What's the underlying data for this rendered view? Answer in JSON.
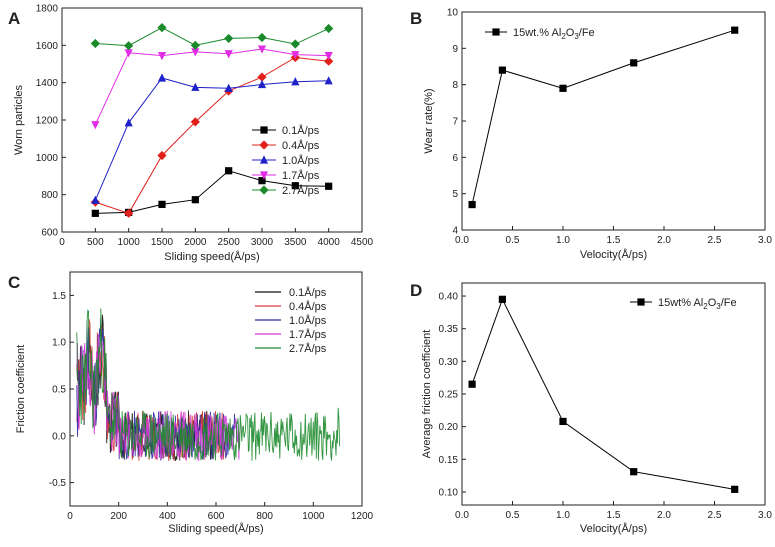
{
  "chart_data": [
    {
      "id": "A",
      "panel_label": "A",
      "type": "line",
      "xlabel": "Sliding speed(Å/ps)",
      "ylabel": "Worn particles",
      "xlim": [
        0,
        4500
      ],
      "ylim": [
        600,
        1800
      ],
      "xticks": [
        0,
        500,
        1000,
        1500,
        2000,
        2500,
        3000,
        3500,
        4000,
        4500
      ],
      "yticks": [
        600,
        800,
        1000,
        1200,
        1400,
        1600,
        1800
      ],
      "x": [
        500,
        1000,
        1500,
        2000,
        2500,
        3000,
        3500,
        4000
      ],
      "legend_position": "center-right",
      "series": [
        {
          "name": "0.1Å/ps",
          "color": "#000000",
          "marker": "square",
          "values": [
            700,
            705,
            748,
            773,
            928,
            875,
            848,
            845
          ]
        },
        {
          "name": "0.4Å/ps",
          "color": "#e0201b",
          "marker": "diamond",
          "values": [
            760,
            700,
            1010,
            1190,
            1355,
            1430,
            1535,
            1515
          ]
        },
        {
          "name": "1.0Å/ps",
          "color": "#1f22c8",
          "marker": "triangle-up",
          "values": [
            770,
            1185,
            1425,
            1375,
            1370,
            1390,
            1405,
            1410
          ]
        },
        {
          "name": "1.7Å/ps",
          "color": "#e22ce6",
          "marker": "triangle-down",
          "values": [
            1175,
            1560,
            1545,
            1565,
            1555,
            1580,
            1550,
            1545
          ]
        },
        {
          "name": "2.7Å/ps",
          "color": "#1a8a2a",
          "marker": "diamond",
          "values": [
            1610,
            1598,
            1695,
            1600,
            1637,
            1642,
            1607,
            1690
          ]
        }
      ]
    },
    {
      "id": "B",
      "panel_label": "B",
      "type": "line",
      "xlabel": "Velocity(Å/ps)",
      "ylabel": "Wear rate(%)",
      "xlim": [
        0.0,
        3.0
      ],
      "ylim": [
        4,
        10
      ],
      "xticks": [
        0.0,
        0.5,
        1.0,
        1.5,
        2.0,
        2.5,
        3.0
      ],
      "yticks": [
        4,
        5,
        6,
        7,
        8,
        9,
        10
      ],
      "legend_position": "top-left",
      "series": [
        {
          "name": "15wt.% Al2O3/Fe",
          "legend_prefix": "15wt.% Al",
          "legend_sub1": "2",
          "legend_mid": "O",
          "legend_sub2": "3",
          "legend_suffix": "/Fe",
          "color": "#000000",
          "marker": "square",
          "x": [
            0.1,
            0.4,
            1.0,
            1.7,
            2.7
          ],
          "values": [
            4.7,
            8.4,
            7.9,
            8.6,
            9.5
          ]
        }
      ]
    },
    {
      "id": "C",
      "panel_label": "C",
      "type": "line",
      "xlabel": "Sliding speed(Å/ps)",
      "ylabel": "Friction coefficient",
      "xlim": [
        0,
        1200
      ],
      "ylim": [
        -0.75,
        1.75
      ],
      "xticks": [
        0,
        200,
        400,
        600,
        800,
        1000,
        1200
      ],
      "yticks": [
        -0.5,
        0.0,
        0.5,
        1.0,
        1.5
      ],
      "legend_position": "top-right",
      "series": [
        {
          "name": "0.1Å/ps",
          "color": "#111111",
          "x_end": 600,
          "seed": 3
        },
        {
          "name": "0.4Å/ps",
          "color": "#d93a3a",
          "x_end": 640,
          "seed": 7
        },
        {
          "name": "1.0Å/ps",
          "color": "#2a2a9e",
          "x_end": 680,
          "seed": 11
        },
        {
          "name": "1.7Å/ps",
          "color": "#d13ad6",
          "x_end": 700,
          "seed": 19
        },
        {
          "name": "2.7Å/ps",
          "color": "#1d8a2d",
          "x_end": 1110,
          "seed": 23
        }
      ]
    },
    {
      "id": "D",
      "panel_label": "D",
      "type": "line",
      "xlabel": "Velocity(Å/ps)",
      "ylabel": "Average friction coefficient",
      "xlim": [
        0.0,
        3.0
      ],
      "ylim": [
        0.08,
        0.42
      ],
      "xticks": [
        0.0,
        0.5,
        1.0,
        1.5,
        2.0,
        2.5,
        3.0
      ],
      "yticks": [
        0.1,
        0.15,
        0.2,
        0.25,
        0.3,
        0.35,
        0.4
      ],
      "legend_position": "top-right",
      "series": [
        {
          "name": "15wt% Al2O3/Fe",
          "legend_prefix": "15wt% Al",
          "legend_sub1": "2",
          "legend_mid": "O",
          "legend_sub2": "3",
          "legend_suffix": "/Fe",
          "color": "#000000",
          "marker": "square",
          "x": [
            0.1,
            0.4,
            1.0,
            1.7,
            2.7
          ],
          "values": [
            0.265,
            0.395,
            0.208,
            0.131,
            0.104
          ]
        }
      ]
    }
  ]
}
